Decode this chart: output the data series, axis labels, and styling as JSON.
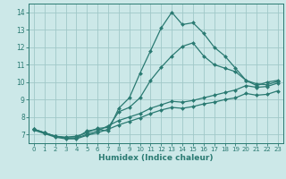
{
  "background_color": "#cce8e8",
  "grid_color": "#a0c8c8",
  "line_color": "#2a7a72",
  "xlabel": "Humidex (Indice chaleur)",
  "xlim": [
    -0.5,
    23.5
  ],
  "ylim": [
    6.5,
    14.5
  ],
  "yticks": [
    7,
    8,
    9,
    10,
    11,
    12,
    13,
    14
  ],
  "xticks": [
    0,
    1,
    2,
    3,
    4,
    5,
    6,
    7,
    8,
    9,
    10,
    11,
    12,
    13,
    14,
    15,
    16,
    17,
    18,
    19,
    20,
    21,
    22,
    23
  ],
  "curves": [
    {
      "x": [
        0,
        1,
        2,
        3,
        4,
        5,
        6,
        7,
        8,
        9,
        10,
        11,
        12,
        13,
        14,
        15,
        16,
        17,
        18,
        19,
        20,
        21,
        22,
        23
      ],
      "y": [
        7.3,
        7.1,
        6.9,
        6.8,
        6.8,
        7.2,
        7.3,
        7.2,
        8.5,
        9.1,
        10.5,
        11.8,
        13.1,
        14.0,
        13.3,
        13.4,
        12.8,
        12.0,
        11.5,
        10.8,
        10.1,
        9.8,
        10.0,
        10.1
      ]
    },
    {
      "x": [
        0,
        1,
        2,
        3,
        4,
        5,
        6,
        7,
        8,
        9,
        10,
        11,
        12,
        13,
        14,
        15,
        16,
        17,
        18,
        19,
        20,
        21,
        22,
        23
      ],
      "y": [
        7.3,
        7.1,
        6.9,
        6.85,
        6.9,
        7.1,
        7.35,
        7.4,
        8.3,
        8.55,
        9.1,
        10.1,
        10.85,
        11.5,
        12.05,
        12.25,
        11.5,
        11.0,
        10.8,
        10.6,
        10.1,
        9.9,
        9.85,
        10.05
      ]
    },
    {
      "x": [
        0,
        1,
        2,
        3,
        4,
        5,
        6,
        7,
        8,
        9,
        10,
        11,
        12,
        13,
        14,
        15,
        16,
        17,
        18,
        19,
        20,
        21,
        22,
        23
      ],
      "y": [
        7.3,
        7.1,
        6.9,
        6.8,
        6.8,
        7.0,
        7.2,
        7.5,
        7.8,
        8.0,
        8.2,
        8.5,
        8.7,
        8.9,
        8.85,
        8.95,
        9.1,
        9.25,
        9.4,
        9.55,
        9.8,
        9.7,
        9.75,
        9.95
      ]
    },
    {
      "x": [
        0,
        1,
        2,
        3,
        4,
        5,
        6,
        7,
        8,
        9,
        10,
        11,
        12,
        13,
        14,
        15,
        16,
        17,
        18,
        19,
        20,
        21,
        22,
        23
      ],
      "y": [
        7.25,
        7.05,
        6.85,
        6.75,
        6.75,
        6.95,
        7.1,
        7.3,
        7.55,
        7.75,
        7.95,
        8.2,
        8.4,
        8.55,
        8.5,
        8.6,
        8.75,
        8.85,
        9.0,
        9.1,
        9.35,
        9.25,
        9.3,
        9.5
      ]
    }
  ]
}
